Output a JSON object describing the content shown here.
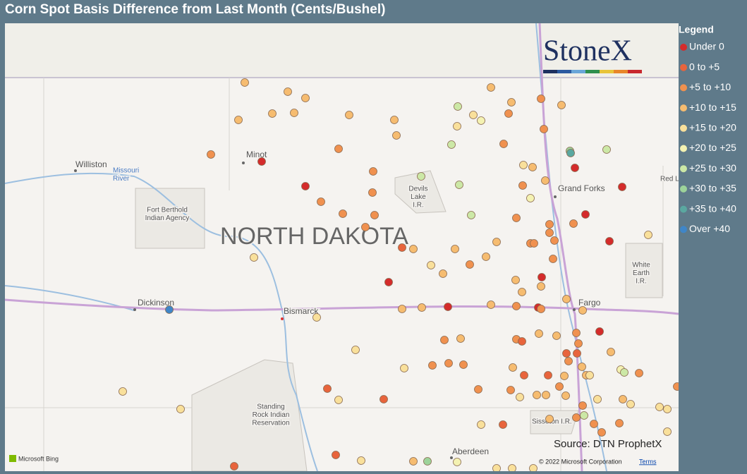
{
  "header": {
    "title": "Corn Spot Basis Difference from Last Month (Cents/Bushel)"
  },
  "legend": {
    "title": "Legend",
    "items": [
      {
        "label": "Under 0",
        "color": "#d42b2b"
      },
      {
        "label": "0 to +5",
        "color": "#e8643c"
      },
      {
        "label": "+5 to +10",
        "color": "#f0914f"
      },
      {
        "label": "+10 to +15",
        "color": "#f6bc70"
      },
      {
        "label": "+15 to +20",
        "color": "#f9e09b"
      },
      {
        "label": "+20 to +25",
        "color": "#f4f2b2"
      },
      {
        "label": "+25 to +30",
        "color": "#cce8a6"
      },
      {
        "label": "+30 to +35",
        "color": "#9dd39a"
      },
      {
        "label": "+35 to +40",
        "color": "#5aa8a0"
      },
      {
        "label": "Over +40",
        "color": "#3f86c8"
      }
    ]
  },
  "map": {
    "labels": [
      {
        "lines": [
          "Williston"
        ]
      },
      {
        "lines": [
          "Missouri",
          "River"
        ]
      },
      {
        "lines": [
          "Minot"
        ]
      },
      {
        "lines": [
          "Fort Berthold",
          "Indian Agency"
        ]
      },
      {
        "lines": [
          "NORTH DAKOTA"
        ]
      },
      {
        "lines": [
          "Devils",
          "Lake",
          "I.R."
        ]
      },
      {
        "lines": [
          "Grand Forks"
        ]
      },
      {
        "lines": [
          "Red L"
        ]
      },
      {
        "lines": [
          "White",
          "Earth",
          "I.R."
        ]
      },
      {
        "lines": [
          "Dickinson"
        ]
      },
      {
        "lines": [
          "Bismarck"
        ]
      },
      {
        "lines": [
          "Fargo"
        ]
      },
      {
        "lines": [
          "Standing",
          "Rock Indian",
          "Reservation"
        ]
      },
      {
        "lines": [
          "Sisseton I.R."
        ]
      },
      {
        "lines": [
          "Aberdeen"
        ]
      }
    ]
  },
  "logo": "StoneX",
  "source": "Source: DTN ProphetX",
  "attribution": {
    "bing": "Microsoft Bing",
    "copyright": "© 2022 Microsoft Corporation",
    "terms": "Terms"
  }
}
